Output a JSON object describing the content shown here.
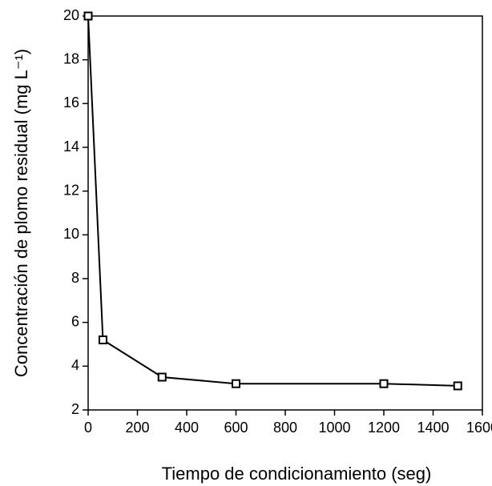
{
  "chart_data": {
    "type": "line",
    "x_label": "Tiempo de condicionamiento (seg)",
    "y_label": "Concentración de plomo residual (mg L⁻¹)",
    "x": [
      0,
      60,
      300,
      600,
      1200,
      1500
    ],
    "series": [
      {
        "name": null,
        "color": "#000000",
        "values": [
          20,
          5.2,
          3.5,
          3.2,
          3.2,
          3.1
        ]
      }
    ],
    "xlim": [
      0,
      1600
    ],
    "xticks": [
      0,
      200,
      400,
      600,
      800,
      1000,
      1200,
      1400,
      1600
    ],
    "ylim": [
      2,
      20
    ],
    "yticks": [
      2,
      4,
      6,
      8,
      10,
      12,
      14,
      16,
      18,
      20
    ],
    "grid": false
  }
}
